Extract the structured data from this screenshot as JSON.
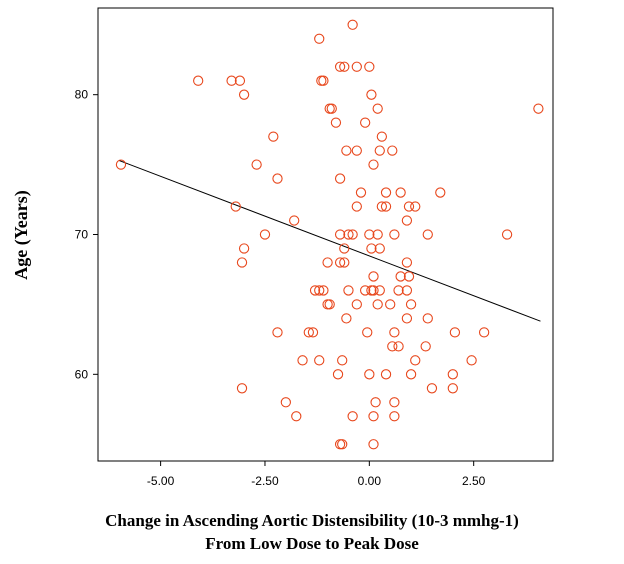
{
  "chart_data": {
    "type": "scatter",
    "title": "",
    "xlabel_line1": "Change in Ascending Aortic Distensibility (10-3 mmhg-1)",
    "xlabel_line2": "From Low Dose to Peak Dose",
    "ylabel": "Age (Years)",
    "xlim": [
      -6.5,
      4.4
    ],
    "ylim": [
      53.8,
      86.2
    ],
    "xticks": [
      -5.0,
      -2.5,
      0.0,
      2.5
    ],
    "xtick_labels": [
      "-5.00",
      "-2.50",
      "0.00",
      "2.50"
    ],
    "yticks": [
      60,
      70,
      80
    ],
    "ytick_labels": [
      "60",
      "70",
      "80"
    ],
    "grid": false,
    "marker_color": "#e8471c",
    "line_color": "#000000",
    "regression_line": [
      [
        -6.0,
        75.3
      ],
      [
        4.1,
        63.8
      ]
    ],
    "points": [
      [
        -0.4,
        85
      ],
      [
        -1.2,
        84
      ],
      [
        -0.7,
        82
      ],
      [
        -0.6,
        82
      ],
      [
        -0.3,
        82
      ],
      [
        0.0,
        82
      ],
      [
        -4.1,
        81
      ],
      [
        -3.3,
        81
      ],
      [
        -3.1,
        81
      ],
      [
        -1.1,
        81
      ],
      [
        -1.15,
        81
      ],
      [
        -3.0,
        80
      ],
      [
        0.05,
        80
      ],
      [
        -0.9,
        79
      ],
      [
        -0.95,
        79
      ],
      [
        0.2,
        79
      ],
      [
        4.05,
        79
      ],
      [
        -0.8,
        78
      ],
      [
        -0.1,
        78
      ],
      [
        0.3,
        77
      ],
      [
        -2.3,
        77
      ],
      [
        0.25,
        76
      ],
      [
        0.55,
        76
      ],
      [
        -0.3,
        76
      ],
      [
        -0.55,
        76
      ],
      [
        -5.95,
        75
      ],
      [
        -2.7,
        75
      ],
      [
        0.1,
        75
      ],
      [
        -2.2,
        74
      ],
      [
        -0.7,
        74
      ],
      [
        -0.2,
        73
      ],
      [
        0.4,
        73
      ],
      [
        0.75,
        73
      ],
      [
        1.7,
        73
      ],
      [
        -3.2,
        72
      ],
      [
        -0.3,
        72
      ],
      [
        0.3,
        72
      ],
      [
        0.4,
        72
      ],
      [
        0.95,
        72
      ],
      [
        1.1,
        72
      ],
      [
        -1.8,
        71
      ],
      [
        0.9,
        71
      ],
      [
        -2.5,
        70
      ],
      [
        -0.7,
        70
      ],
      [
        -0.4,
        70
      ],
      [
        -0.5,
        70
      ],
      [
        0.0,
        70
      ],
      [
        0.2,
        70
      ],
      [
        0.6,
        70
      ],
      [
        1.4,
        70
      ],
      [
        3.3,
        70
      ],
      [
        -3.0,
        69
      ],
      [
        -0.6,
        69
      ],
      [
        0.05,
        69
      ],
      [
        0.25,
        69
      ],
      [
        -3.05,
        68
      ],
      [
        -0.7,
        68
      ],
      [
        0.9,
        68
      ],
      [
        -0.6,
        68
      ],
      [
        -1.0,
        68
      ],
      [
        0.75,
        67
      ],
      [
        0.95,
        67
      ],
      [
        0.1,
        67
      ],
      [
        -1.3,
        66
      ],
      [
        -1.1,
        66
      ],
      [
        -1.2,
        66
      ],
      [
        -0.5,
        66
      ],
      [
        -0.1,
        66
      ],
      [
        0.05,
        66
      ],
      [
        0.1,
        66
      ],
      [
        0.25,
        66
      ],
      [
        0.7,
        66
      ],
      [
        0.9,
        66
      ],
      [
        -1.0,
        65
      ],
      [
        -0.95,
        65
      ],
      [
        -0.3,
        65
      ],
      [
        0.2,
        65
      ],
      [
        0.5,
        65
      ],
      [
        1.0,
        65
      ],
      [
        -0.55,
        64
      ],
      [
        0.9,
        64
      ],
      [
        1.4,
        64
      ],
      [
        -2.2,
        63
      ],
      [
        -1.45,
        63
      ],
      [
        -1.35,
        63
      ],
      [
        -0.05,
        63
      ],
      [
        0.6,
        63
      ],
      [
        2.05,
        63
      ],
      [
        2.75,
        63
      ],
      [
        0.55,
        62
      ],
      [
        0.7,
        62
      ],
      [
        1.35,
        62
      ],
      [
        -1.6,
        61
      ],
      [
        -1.2,
        61
      ],
      [
        -0.65,
        61
      ],
      [
        1.1,
        61
      ],
      [
        2.45,
        61
      ],
      [
        -0.75,
        60
      ],
      [
        0.0,
        60
      ],
      [
        0.4,
        60
      ],
      [
        1.0,
        60
      ],
      [
        2.0,
        60
      ],
      [
        -3.05,
        59
      ],
      [
        1.5,
        59
      ],
      [
        2.0,
        59
      ],
      [
        -2.0,
        58
      ],
      [
        0.15,
        58
      ],
      [
        0.6,
        58
      ],
      [
        -1.75,
        57
      ],
      [
        -0.4,
        57
      ],
      [
        0.1,
        57
      ],
      [
        0.6,
        57
      ],
      [
        -0.65,
        55
      ],
      [
        -0.7,
        55
      ],
      [
        0.1,
        55
      ]
    ]
  }
}
